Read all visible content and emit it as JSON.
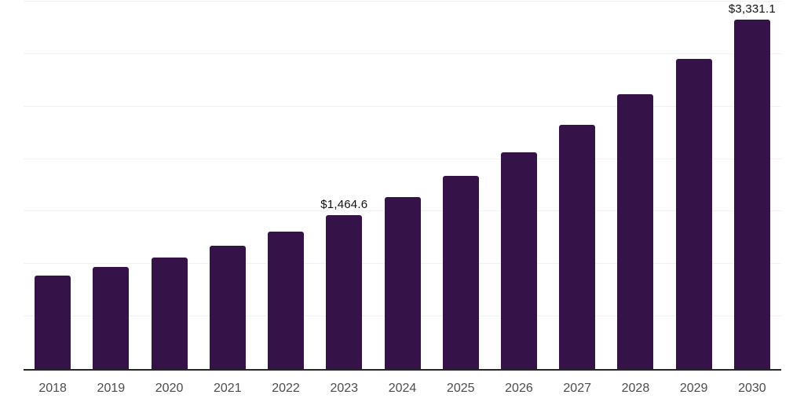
{
  "chart_data": {
    "type": "bar",
    "title": "",
    "xlabel": "",
    "ylabel": "",
    "categories": [
      "2018",
      "2019",
      "2020",
      "2021",
      "2022",
      "2023",
      "2024",
      "2025",
      "2026",
      "2027",
      "2028",
      "2029",
      "2030"
    ],
    "values": [
      887,
      970,
      1060,
      1172,
      1306,
      1464.6,
      1635,
      1837,
      2062,
      2323,
      2615,
      2952,
      3331.1
    ],
    "data_labels": {
      "2023": "$1,464.6",
      "2030": "$3,331.1"
    },
    "ylim": [
      0,
      3500
    ],
    "grid_interval": 500,
    "grid": "horizontal-only",
    "legend": "none",
    "y_axis_tick_labels": "none",
    "colors": {
      "bar": "#351349",
      "grid": "#f2f2f2",
      "axis": "#262626",
      "tick_label": "#4d4d4d",
      "data_label": "#111111",
      "background": "#ffffff"
    }
  }
}
